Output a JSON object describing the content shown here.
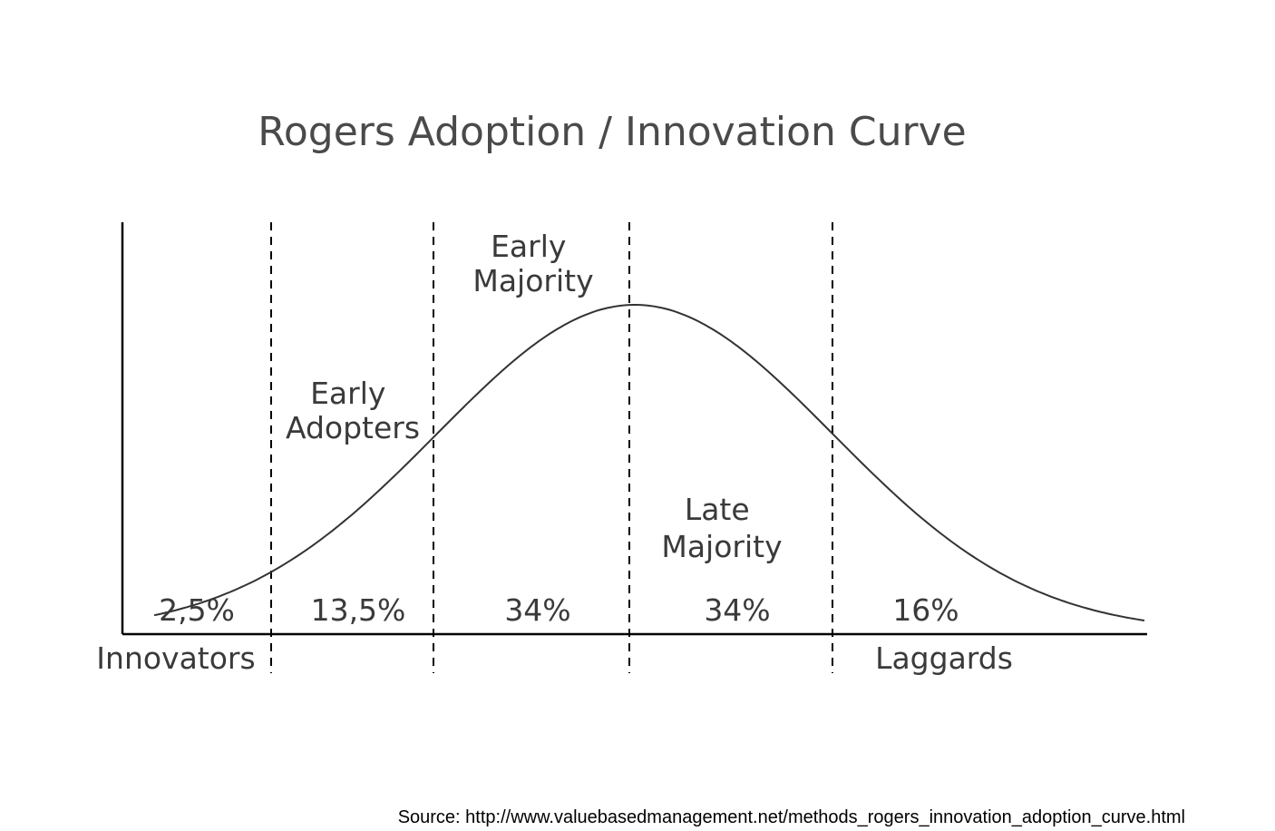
{
  "title": "Rogers Adoption / Innovation Curve",
  "labels": {
    "early_adopters": [
      "Early",
      "Adopters"
    ],
    "early_majority": [
      "Early",
      "Majority"
    ],
    "late_majority": [
      "Late",
      "Majority"
    ],
    "innovators": "Innovators",
    "laggards": "Laggards"
  },
  "percentages": {
    "innovators": "2,5%",
    "early_adopters": "13,5%",
    "early_majority": "34%",
    "late_majority": "34%",
    "laggards": "16%"
  },
  "source": "Source: http://www.valuebasedmanagement.net/methods_rogers_innovation_adoption_curve.html"
}
